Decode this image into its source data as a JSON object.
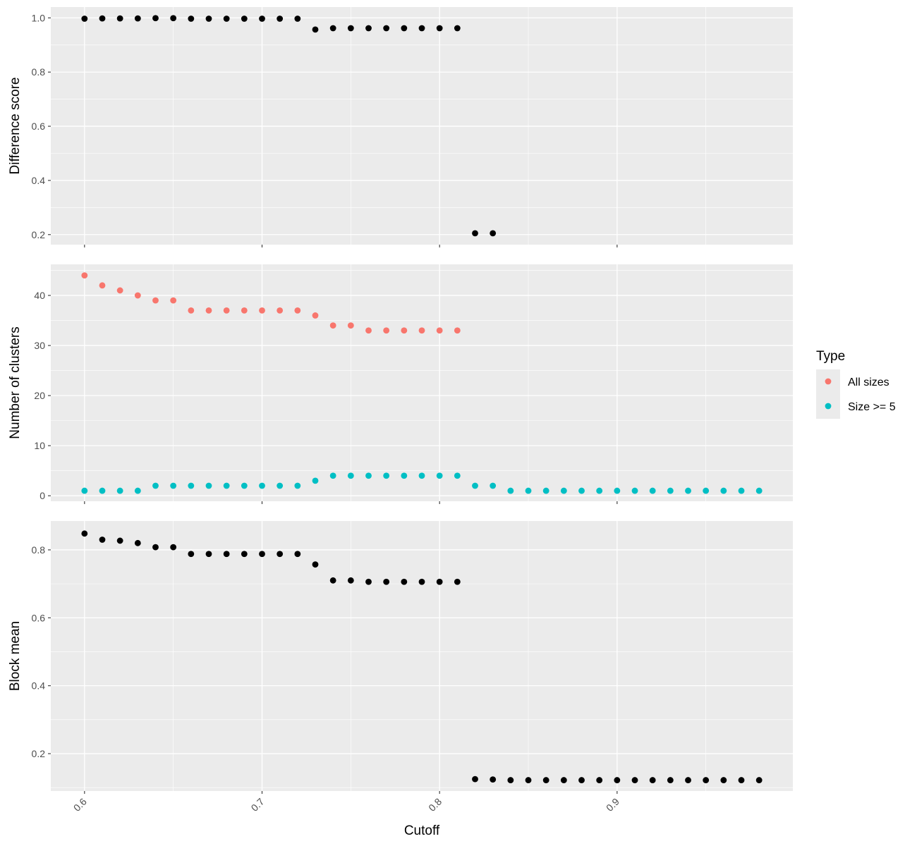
{
  "chart_data": {
    "type": "scatter",
    "xlabel": "Cutoff",
    "x_ticks": [
      0.6,
      0.7,
      0.8,
      0.9
    ],
    "x_tick_labels": [
      "0.6",
      "0.7",
      "0.8",
      "0.9"
    ],
    "xlim": [
      0.581,
      0.999
    ],
    "legend": {
      "title": "Type",
      "position": "right",
      "entries": [
        {
          "label": "All sizes",
          "color": "#F8766D"
        },
        {
          "label": "Size >= 5",
          "color": "#00BFC4"
        }
      ]
    },
    "panels": [
      {
        "ylabel": "Difference score",
        "ylim": [
          0.163,
          1.04
        ],
        "y_ticks": [
          0.2,
          0.4,
          0.6,
          0.8,
          1.0
        ],
        "y_tick_labels": [
          "0.2",
          "0.4",
          "0.6",
          "0.8",
          "1.0"
        ],
        "series": [
          {
            "color": "#000000",
            "x": [
              0.6,
              0.61,
              0.62,
              0.63,
              0.64,
              0.65,
              0.66,
              0.67,
              0.68,
              0.69,
              0.7,
              0.71,
              0.72,
              0.73,
              0.74,
              0.75,
              0.76,
              0.77,
              0.78,
              0.79,
              0.8,
              0.81,
              0.82,
              0.83
            ],
            "y": [
              0.997,
              0.998,
              0.998,
              0.998,
              0.999,
              0.999,
              0.997,
              0.997,
              0.997,
              0.997,
              0.997,
              0.997,
              0.997,
              0.957,
              0.962,
              0.962,
              0.962,
              0.962,
              0.962,
              0.962,
              0.962,
              0.962,
              0.205,
              0.205
            ]
          }
        ]
      },
      {
        "ylabel": "Number of clusters",
        "ylim": [
          -1.1,
          46.2
        ],
        "y_ticks": [
          0,
          10,
          20,
          30,
          40
        ],
        "y_tick_labels": [
          "0",
          "10",
          "20",
          "30",
          "40"
        ],
        "series": [
          {
            "name": "All sizes",
            "color": "#F8766D",
            "x": [
              0.6,
              0.61,
              0.62,
              0.63,
              0.64,
              0.65,
              0.66,
              0.67,
              0.68,
              0.69,
              0.7,
              0.71,
              0.72,
              0.73,
              0.74,
              0.75,
              0.76,
              0.77,
              0.78,
              0.79,
              0.8,
              0.81
            ],
            "y": [
              44,
              42,
              41,
              40,
              39,
              39,
              37,
              37,
              37,
              37,
              37,
              37,
              37,
              36,
              34,
              34,
              33,
              33,
              33,
              33,
              33,
              33
            ]
          },
          {
            "name": "Size >= 5",
            "color": "#00BFC4",
            "x": [
              0.6,
              0.61,
              0.62,
              0.63,
              0.64,
              0.65,
              0.66,
              0.67,
              0.68,
              0.69,
              0.7,
              0.71,
              0.72,
              0.73,
              0.74,
              0.75,
              0.76,
              0.77,
              0.78,
              0.79,
              0.8,
              0.81,
              0.82,
              0.83,
              0.84,
              0.85,
              0.86,
              0.87,
              0.88,
              0.89,
              0.9,
              0.91,
              0.92,
              0.93,
              0.94,
              0.95,
              0.96,
              0.97,
              0.98
            ],
            "y": [
              1,
              1,
              1,
              1,
              2,
              2,
              2,
              2,
              2,
              2,
              2,
              2,
              2,
              3,
              4,
              4,
              4,
              4,
              4,
              4,
              4,
              4,
              2,
              2,
              1,
              1,
              1,
              1,
              1,
              1,
              1,
              1,
              1,
              1,
              1,
              1,
              1,
              1,
              1
            ]
          }
        ]
      },
      {
        "ylabel": "Block mean",
        "ylim": [
          0.09,
          0.885
        ],
        "y_ticks": [
          0.2,
          0.4,
          0.6,
          0.8
        ],
        "y_tick_labels": [
          "0.2",
          "0.4",
          "0.6",
          "0.8"
        ],
        "series": [
          {
            "color": "#000000",
            "x": [
              0.6,
              0.61,
              0.62,
              0.63,
              0.64,
              0.65,
              0.66,
              0.67,
              0.68,
              0.69,
              0.7,
              0.71,
              0.72,
              0.73,
              0.74,
              0.75,
              0.76,
              0.77,
              0.78,
              0.79,
              0.8,
              0.81,
              0.82,
              0.83,
              0.84,
              0.85,
              0.86,
              0.87,
              0.88,
              0.89,
              0.9,
              0.91,
              0.92,
              0.93,
              0.94,
              0.95,
              0.96,
              0.97,
              0.98
            ],
            "y": [
              0.848,
              0.83,
              0.827,
              0.82,
              0.808,
              0.808,
              0.788,
              0.788,
              0.788,
              0.788,
              0.788,
              0.788,
              0.788,
              0.757,
              0.71,
              0.71,
              0.706,
              0.706,
              0.706,
              0.706,
              0.706,
              0.706,
              0.125,
              0.124,
              0.122,
              0.122,
              0.122,
              0.122,
              0.122,
              0.122,
              0.122,
              0.122,
              0.122,
              0.122,
              0.122,
              0.122,
              0.122,
              0.122,
              0.122
            ]
          }
        ]
      }
    ]
  }
}
